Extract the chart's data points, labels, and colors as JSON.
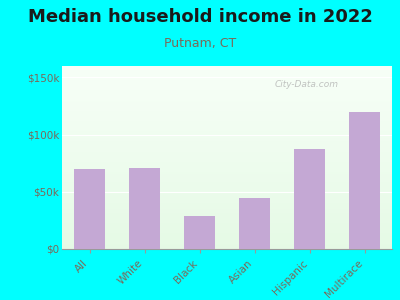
{
  "title": "Median household income in 2022",
  "subtitle": "Putnam, CT",
  "categories": [
    "All",
    "White",
    "Black",
    "Asian",
    "Hispanic",
    "Multirace"
  ],
  "values": [
    70000,
    71000,
    29000,
    45000,
    87000,
    120000
  ],
  "bar_color": "#c4a8d4",
  "background_outer": "#00ffff",
  "title_fontsize": 13,
  "subtitle_fontsize": 9,
  "subtitle_color": "#7a6a5a",
  "title_color": "#1a1a1a",
  "tick_color": "#7a6a5a",
  "watermark": "City-Data.com",
  "ylim": [
    0,
    160000
  ],
  "yticks": [
    0,
    50000,
    100000,
    150000
  ],
  "ytick_labels": [
    "$0",
    "$50k",
    "$100k",
    "$150k"
  ]
}
